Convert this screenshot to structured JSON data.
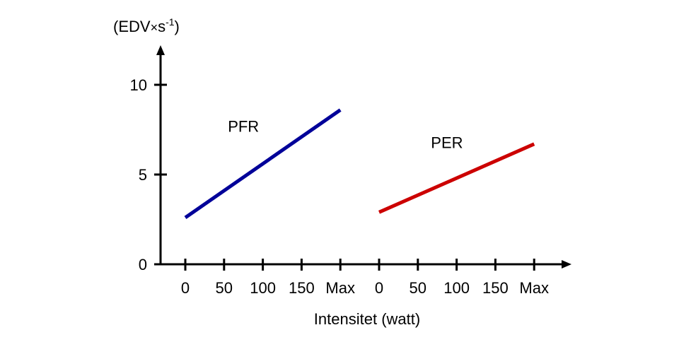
{
  "chart_data": {
    "type": "line",
    "ylabel_prefix": "(EDV",
    "ylabel_times": "×",
    "ylabel_unit": "s",
    "ylabel_exp": "-1",
    "ylabel_suffix": ")",
    "xlabel": "Intensitet (watt)",
    "ylim": [
      0,
      12
    ],
    "yticks": [
      {
        "value": 0,
        "label": "0"
      },
      {
        "value": 5,
        "label": "5"
      },
      {
        "value": 10,
        "label": "10"
      }
    ],
    "xgroups": [
      {
        "ticks": [
          {
            "pos": 0,
            "label": "0"
          },
          {
            "pos": 1,
            "label": "50"
          },
          {
            "pos": 2,
            "label": "100"
          },
          {
            "pos": 3,
            "label": "150"
          },
          {
            "pos": 4,
            "label": "Max"
          }
        ]
      },
      {
        "ticks": [
          {
            "pos": 5,
            "label": "0"
          },
          {
            "pos": 6,
            "label": "50"
          },
          {
            "pos": 7,
            "label": "100"
          },
          {
            "pos": 8,
            "label": "150"
          },
          {
            "pos": 9,
            "label": "Max"
          }
        ]
      }
    ],
    "series": [
      {
        "name": "PFR",
        "color": "#000099",
        "x": [
          0,
          4
        ],
        "y": [
          2.6,
          8.6
        ],
        "label_at": [
          1.5,
          7.7
        ]
      },
      {
        "name": "PER",
        "color": "#cc0000",
        "x": [
          5,
          9
        ],
        "y": [
          2.9,
          6.7
        ],
        "label_at": [
          6.75,
          6.8
        ]
      }
    ],
    "grid": false,
    "legend": "none"
  }
}
